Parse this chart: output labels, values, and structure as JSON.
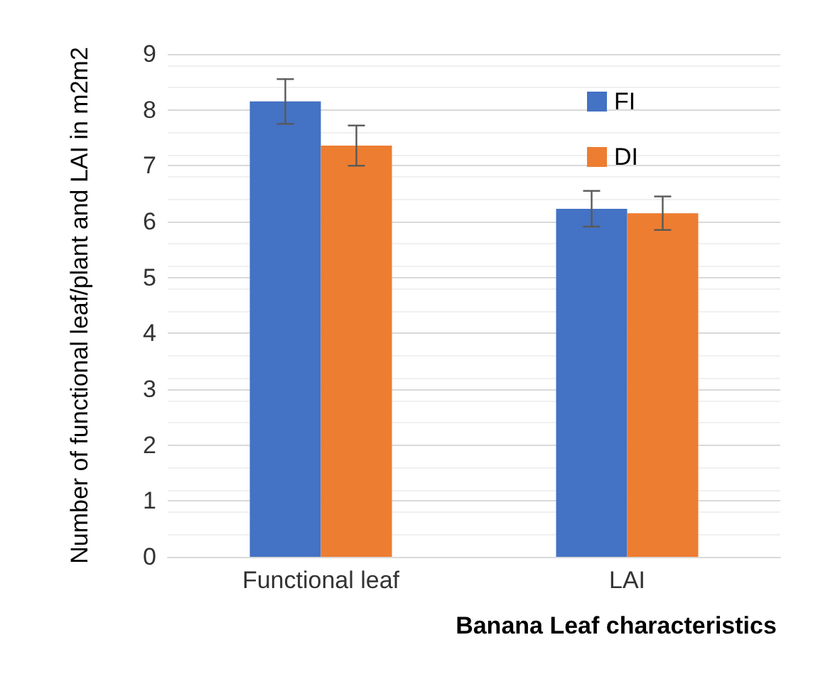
{
  "chart_data": {
    "type": "bar",
    "xlabel": "Banana Leaf characteristics",
    "ylabel": "Number of functional leaf/plant and LAI in m2m2",
    "categories": [
      "Functional leaf",
      "LAI"
    ],
    "series": [
      {
        "name": "FI",
        "color": "#4472c4",
        "values": [
          8.15,
          6.23
        ],
        "errors": [
          0.4,
          0.32
        ]
      },
      {
        "name": "DI",
        "color": "#ed7d31",
        "values": [
          7.36,
          6.15
        ],
        "errors": [
          0.36,
          0.3
        ]
      }
    ],
    "ylim": [
      0,
      9
    ],
    "yticks": [
      0,
      1,
      2,
      3,
      4,
      5,
      6,
      7,
      8,
      9
    ],
    "grid": "y",
    "legend": "top right"
  }
}
